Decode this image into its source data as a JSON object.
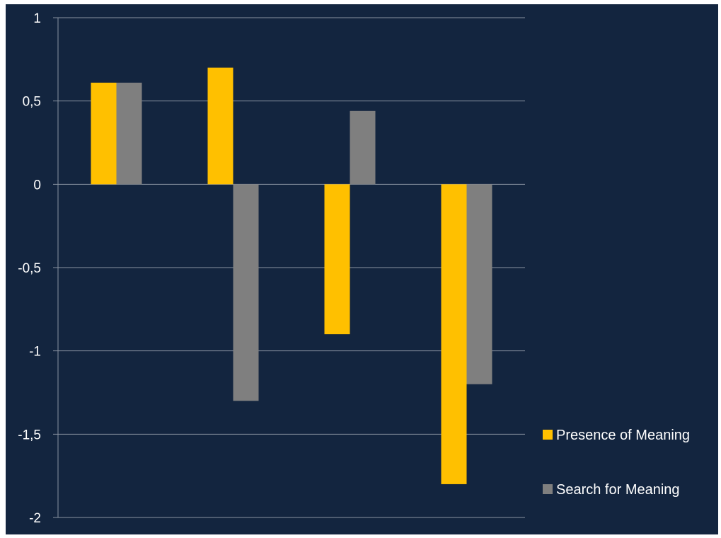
{
  "chart_data": {
    "type": "bar",
    "title": "",
    "xlabel": "",
    "ylabel": "",
    "categories": [
      "",
      "",
      "",
      ""
    ],
    "ylim": [
      -2,
      1
    ],
    "yticks": [
      1,
      0.5,
      0,
      -0.5,
      -1,
      -1.5,
      -2
    ],
    "ytick_labels": [
      "1",
      "0,5",
      "0",
      "-0,5",
      "-1",
      "-1,5",
      "-2"
    ],
    "grid": true,
    "legend_position": "right",
    "series": [
      {
        "name": "Presence of Meaning",
        "color": "#ffc000",
        "values": [
          0.61,
          0.7,
          -0.9,
          -1.8
        ]
      },
      {
        "name": "Search for Meaning",
        "color": "#7f7f7f",
        "values": [
          0.61,
          -1.3,
          0.44,
          -1.2
        ]
      }
    ]
  },
  "colors": {
    "background": "#13253f",
    "gridline": "#8a93a0"
  }
}
